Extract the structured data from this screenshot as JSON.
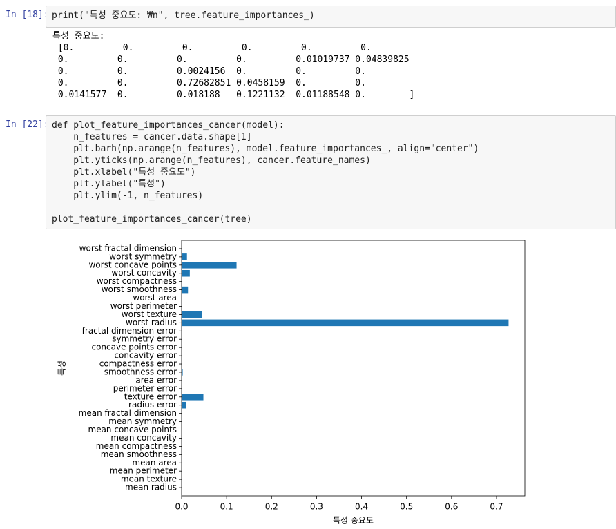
{
  "cells": [
    {
      "prompt": "In [18]:",
      "code": [
        "print(\"특성 중요도: ₩n\", tree.feature_importances_)"
      ],
      "output": [
        "특성 중요도:",
        " [0.         0.         0.         0.         0.         0.",
        " 0.         0.         0.         0.         0.01019737 0.04839825",
        " 0.         0.         0.0024156  0.         0.         0.",
        " 0.         0.         0.72682851 0.0458159  0.         0.",
        " 0.0141577  0.         0.018188   0.1221132  0.01188548 0.        ]"
      ]
    },
    {
      "prompt": "In [22]:",
      "code": [
        "def plot_feature_importances_cancer(model):",
        "    n_features = cancer.data.shape[1]",
        "    plt.barh(np.arange(n_features), model.feature_importances_, align=\"center\")",
        "    plt.yticks(np.arange(n_features), cancer.feature_names)",
        "    plt.xlabel(\"특성 중요도\")",
        "    plt.ylabel(\"특성\")",
        "    plt.ylim(-1, n_features)"
      ],
      "call": "plot_feature_importances_cancer(tree)"
    }
  ],
  "chart_data": {
    "type": "barh",
    "xlabel": "특성 중요도",
    "ylabel": "특성",
    "color": "#1f77b4",
    "categories": [
      "mean radius",
      "mean texture",
      "mean perimeter",
      "mean area",
      "mean smoothness",
      "mean compactness",
      "mean concavity",
      "mean concave points",
      "mean symmetry",
      "mean fractal dimension",
      "radius error",
      "texture error",
      "perimeter error",
      "area error",
      "smoothness error",
      "compactness error",
      "concavity error",
      "concave points error",
      "symmetry error",
      "fractal dimension error",
      "worst radius",
      "worst texture",
      "worst perimeter",
      "worst area",
      "worst smoothness",
      "worst compactness",
      "worst concavity",
      "worst concave points",
      "worst symmetry",
      "worst fractal dimension"
    ],
    "values": [
      0,
      0,
      0,
      0,
      0,
      0,
      0,
      0,
      0,
      0,
      0.01019737,
      0.04839825,
      0,
      0,
      0.0024156,
      0,
      0,
      0,
      0,
      0,
      0.72682851,
      0.0458159,
      0,
      0,
      0.0141577,
      0,
      0.018188,
      0.1221132,
      0.01188548,
      0
    ],
    "xlim": [
      0,
      0.763
    ],
    "ylim": [
      -1,
      30
    ],
    "xticks": [
      {
        "value": 0,
        "label": "0.0"
      },
      0.1,
      0.2,
      0.3,
      0.4,
      0.5,
      0.6,
      0.7
    ]
  }
}
